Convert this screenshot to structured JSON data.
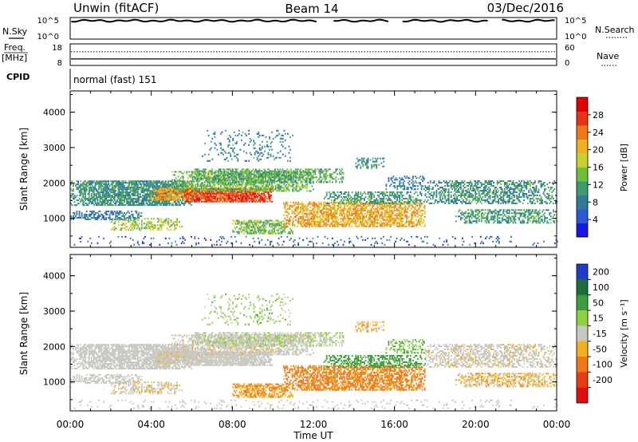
{
  "header": {
    "radar": "Unwin (fitACF)",
    "beam": "Beam 14",
    "date": "03/Dec/2016"
  },
  "left_labels": {
    "nsky": "N.Sky",
    "freq": "Freq.",
    "freq_unit": "[MHz]",
    "cpid": "CPID"
  },
  "right_labels": {
    "nsearch": "N.Search",
    "nave": "Nave"
  },
  "cpid_text": "normal (fast) 151",
  "chart_data": [
    {
      "type": "line",
      "name": "noise-panel",
      "left_axis": {
        "ticks": [
          "10^5",
          "10^0"
        ]
      },
      "right_axis": {
        "ticks": [
          "10^5",
          "10^0"
        ]
      }
    },
    {
      "type": "line",
      "name": "freq-nave-panel",
      "left_axis": {
        "ticks": [
          "18",
          "8"
        ],
        "range": [
          8,
          18
        ]
      },
      "right_axis": {
        "ticks": [
          "60",
          "0"
        ],
        "range": [
          0,
          60
        ]
      },
      "freq_level": 11,
      "nave_level": 38
    },
    {
      "type": "heatmap",
      "name": "power",
      "ylabel": "Slant Range [km]",
      "ylim": [
        180,
        4600
      ],
      "yticks": [
        1000,
        2000,
        3000,
        4000
      ],
      "colorbar": {
        "label": "Power [dB]",
        "min": 0,
        "max": 32,
        "ticks": [
          4,
          8,
          12,
          16,
          20,
          24,
          28
        ],
        "colors": [
          "#1818e6",
          "#2a5bd6",
          "#2f7a96",
          "#3f9a6e",
          "#6fbf3a",
          "#c8d22c",
          "#f0b020",
          "#f07818",
          "#e83414",
          "#e00000"
        ]
      }
    },
    {
      "type": "heatmap",
      "name": "velocity",
      "ylabel": "Slant Range [km]",
      "ylim": [
        180,
        4600
      ],
      "yticks": [
        1000,
        2000,
        3000,
        4000
      ],
      "colorbar": {
        "label": "Velocity [m s⁻¹]",
        "ticks": [
          "200",
          "100",
          "50",
          "15",
          "-15",
          "-50",
          "-100",
          "-200"
        ],
        "colors": [
          "#1e3cc8",
          "#1e6e3c",
          "#3c9e3c",
          "#8ed040",
          "#c8c8c0",
          "#f0b020",
          "#f07818",
          "#e83c14",
          "#e01010"
        ]
      }
    }
  ],
  "xaxis": {
    "label": "Time UT",
    "ticks": [
      "00:00",
      "04:00",
      "08:00",
      "12:00",
      "16:00",
      "20:00",
      "00:00"
    ],
    "range_hours": [
      0,
      24
    ]
  }
}
